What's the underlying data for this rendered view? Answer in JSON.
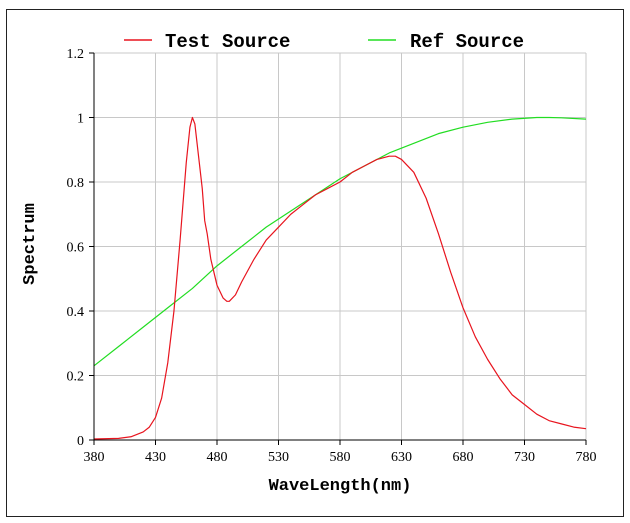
{
  "chart_data": {
    "type": "line",
    "xlabel": "WaveLength(nm)",
    "ylabel": "Spectrum",
    "xlim": [
      380,
      780
    ],
    "ylim": [
      0,
      1.2
    ],
    "x_ticks": [
      "380",
      "430",
      "480",
      "530",
      "580",
      "630",
      "680",
      "730",
      "780"
    ],
    "y_ticks": [
      "0",
      "0.2",
      "0.4",
      "0.6",
      "0.8",
      "1",
      "1.2"
    ],
    "grid": true,
    "legend_position": "top",
    "colors": {
      "Test Source": "#e8141e",
      "Ref Source": "#22dd22"
    },
    "series": [
      {
        "name": "Test Source",
        "x": [
          380,
          400,
          410,
          420,
          425,
          430,
          435,
          440,
          445,
          450,
          455,
          458,
          460,
          462,
          465,
          468,
          470,
          472,
          475,
          480,
          485,
          488,
          490,
          495,
          500,
          510,
          520,
          530,
          540,
          550,
          560,
          570,
          580,
          590,
          600,
          610,
          620,
          625,
          630,
          640,
          650,
          660,
          670,
          680,
          690,
          700,
          710,
          720,
          730,
          740,
          750,
          760,
          770,
          780
        ],
        "values": [
          0.003,
          0.005,
          0.01,
          0.025,
          0.04,
          0.07,
          0.13,
          0.24,
          0.4,
          0.62,
          0.86,
          0.97,
          1.0,
          0.98,
          0.88,
          0.78,
          0.68,
          0.64,
          0.56,
          0.48,
          0.44,
          0.43,
          0.43,
          0.45,
          0.49,
          0.56,
          0.62,
          0.66,
          0.7,
          0.73,
          0.76,
          0.78,
          0.8,
          0.83,
          0.85,
          0.87,
          0.88,
          0.88,
          0.87,
          0.83,
          0.75,
          0.64,
          0.52,
          0.41,
          0.32,
          0.25,
          0.19,
          0.14,
          0.11,
          0.08,
          0.06,
          0.05,
          0.04,
          0.035
        ]
      },
      {
        "name": "Ref Source",
        "x": [
          380,
          400,
          420,
          440,
          460,
          480,
          500,
          520,
          540,
          560,
          580,
          600,
          620,
          640,
          660,
          680,
          700,
          720,
          740,
          750,
          760,
          780
        ],
        "values": [
          0.23,
          0.29,
          0.35,
          0.41,
          0.47,
          0.54,
          0.6,
          0.66,
          0.71,
          0.76,
          0.81,
          0.85,
          0.89,
          0.92,
          0.95,
          0.97,
          0.985,
          0.995,
          1.0,
          1.0,
          0.999,
          0.995
        ]
      }
    ]
  }
}
